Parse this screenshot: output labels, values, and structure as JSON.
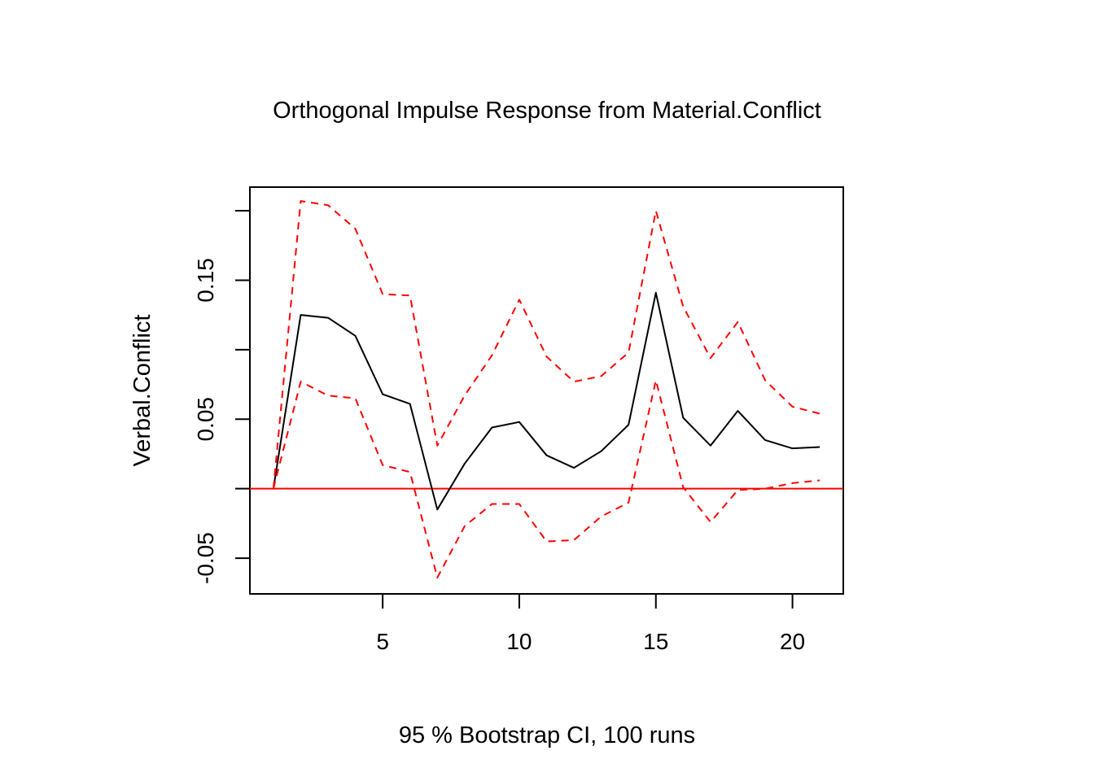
{
  "chart_data": {
    "type": "line",
    "title": "Orthogonal Impulse Response from Material.Conflict",
    "xlabel": "95 % Bootstrap CI,  100 runs",
    "ylabel": "Verbal.Conflict",
    "x": [
      1,
      2,
      3,
      4,
      5,
      6,
      7,
      8,
      9,
      10,
      11,
      12,
      13,
      14,
      15,
      16,
      17,
      18,
      19,
      20,
      21
    ],
    "x_ticks": [
      "5",
      "10",
      "15",
      "20"
    ],
    "x_tick_values": [
      5,
      10,
      15,
      20
    ],
    "y_ticks": [
      "-0.05",
      "0.05",
      "0.15"
    ],
    "y_tick_values": [
      -0.05,
      0.05,
      0.15
    ],
    "y_minor_tick_values": [
      0.0,
      0.1,
      0.2
    ],
    "xlim": [
      0.14,
      21.86
    ],
    "ylim": [
      -0.0757,
      0.217
    ],
    "reference_line": {
      "y": 0,
      "color": "#ff0000"
    },
    "series": [
      {
        "role": "response",
        "style": "solid",
        "color": "#000000",
        "values": [
          0.0,
          0.125,
          0.123,
          0.11,
          0.068,
          0.061,
          -0.015,
          0.018,
          0.044,
          0.048,
          0.024,
          0.015,
          0.027,
          0.046,
          0.141,
          0.051,
          0.031,
          0.056,
          0.035,
          0.029,
          0.03
        ]
      },
      {
        "role": "upper",
        "style": "dashed",
        "color": "#ff0000",
        "values": [
          0.0,
          0.207,
          0.204,
          0.187,
          0.14,
          0.139,
          0.031,
          0.067,
          0.096,
          0.136,
          0.095,
          0.077,
          0.081,
          0.098,
          0.2,
          0.131,
          0.094,
          0.12,
          0.078,
          0.059,
          0.054
        ]
      },
      {
        "role": "lower",
        "style": "dashed",
        "color": "#ff0000",
        "values": [
          0.0,
          0.077,
          0.067,
          0.065,
          0.017,
          0.012,
          -0.064,
          -0.027,
          -0.011,
          -0.011,
          -0.038,
          -0.037,
          -0.02,
          -0.01,
          0.078,
          0.001,
          -0.024,
          -0.001,
          0.0,
          0.004,
          0.006
        ]
      }
    ],
    "grid": false,
    "legend": "none"
  }
}
